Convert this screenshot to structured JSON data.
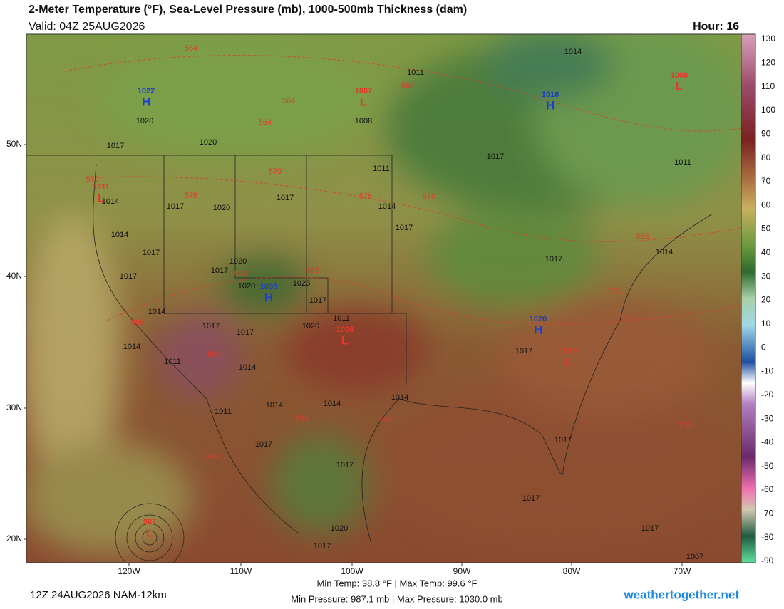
{
  "header": {
    "title": "2-Meter Temperature (°F), Sea-Level Pressure (mb), 1000-500mb Thickness (dam)",
    "valid": "Valid: 04Z 25AUG2026",
    "hour": "Hour: 16"
  },
  "colorbar": {
    "ticks": [
      130,
      120,
      110,
      100,
      90,
      80,
      70,
      60,
      50,
      40,
      30,
      20,
      10,
      0,
      -10,
      -20,
      -30,
      -40,
      -50,
      -60,
      -70,
      -80,
      -90
    ]
  },
  "axes": {
    "lat_labels": [
      "50N",
      "40N",
      "30N",
      "20N"
    ],
    "lon_labels": [
      "120W",
      "110W",
      "100W",
      "90W",
      "80W",
      "70W"
    ]
  },
  "map_labels": {
    "centers": [
      {
        "letter": "H",
        "value": 1022
      },
      {
        "letter": "L",
        "value": 1011
      },
      {
        "letter": "L",
        "value": 1007
      },
      {
        "letter": "H",
        "value": 1016
      },
      {
        "letter": "L",
        "value": 1008
      },
      {
        "letter": "H",
        "value": 1030
      },
      {
        "letter": "L",
        "value": 1008
      },
      {
        "letter": "H",
        "value": 1020
      },
      {
        "letter": "L",
        "value": 1016
      },
      {
        "letter": "L",
        "value": 987
      }
    ],
    "isobars": [
      1020,
      1017,
      1020,
      1014,
      1017,
      1020,
      1017,
      1011,
      1014,
      1017,
      1014,
      1017,
      1017,
      1020,
      1017,
      1020,
      1023,
      1014,
      1017,
      1011,
      1017,
      1017,
      1020,
      1014,
      1011,
      1014,
      1014,
      1014,
      1014,
      1011,
      1017,
      1017,
      1017,
      1017,
      1014,
      1014,
      1011,
      1008,
      1017,
      1017,
      1017,
      1017,
      1020,
      1017,
      1007,
      1011
    ],
    "thickness": [
      564,
      564,
      564,
      564,
      570,
      576,
      570,
      576,
      570,
      582,
      582,
      588,
      588,
      576,
      570,
      558,
      582,
      588,
      588,
      576
    ]
  },
  "footer": {
    "run": "12Z 24AUG2026 NAM-12km",
    "temps": "Min Temp:  38.8 °F | Max Temp:  99.6 °F",
    "pressures": "Min Pressure: 987.1 mb | Max Pressure: 1030.0 mb",
    "site": "weathertogether.net"
  }
}
